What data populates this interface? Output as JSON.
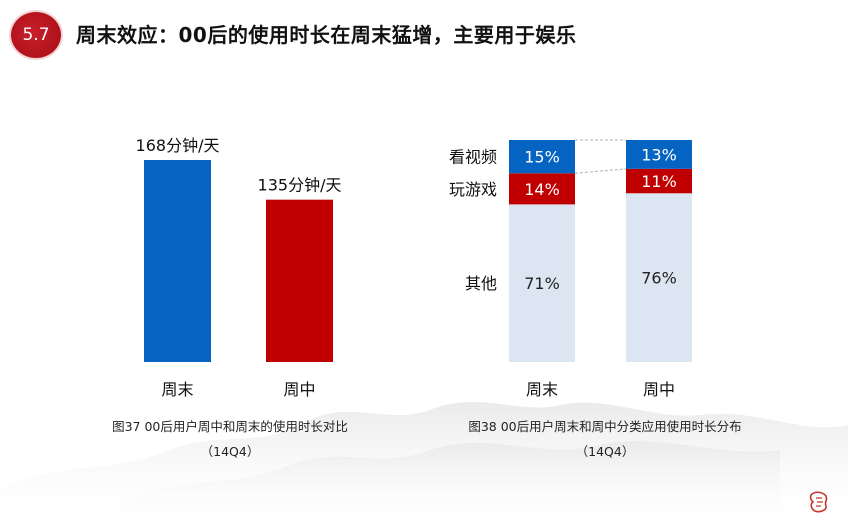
{
  "header": {
    "badge": "5.7",
    "title": "周末效应：00后的使用时长在周末猛增，主要用于娱乐"
  },
  "chart_data": [
    {
      "type": "bar",
      "categories": [
        "周末",
        "周中"
      ],
      "values": [
        168,
        135
      ],
      "data_labels": [
        "168分钟/天",
        "135分钟/天"
      ],
      "colors": [
        "#0563c1",
        "#c00000"
      ],
      "ylim": [
        0,
        200
      ],
      "caption_line1": "图37 00后用户周中和周末的使用时长对比",
      "caption_line2": "（14Q4）"
    },
    {
      "type": "bar",
      "stacked": true,
      "categories": [
        "周末",
        "周中"
      ],
      "series": [
        {
          "name": "其他",
          "values": [
            71,
            76
          ],
          "labels": [
            "71%",
            "76%"
          ],
          "color": "#dce6f2"
        },
        {
          "name": "玩游戏",
          "values": [
            14,
            11
          ],
          "labels": [
            "14%",
            "11%"
          ],
          "color": "#c00000"
        },
        {
          "name": "看视频",
          "values": [
            15,
            13
          ],
          "labels": [
            "15%",
            "13%"
          ],
          "color": "#0563c1"
        }
      ],
      "caption_line1": "图38 00后用户周末和周中分类应用使用时长分布",
      "caption_line2": "（14Q4）"
    }
  ]
}
